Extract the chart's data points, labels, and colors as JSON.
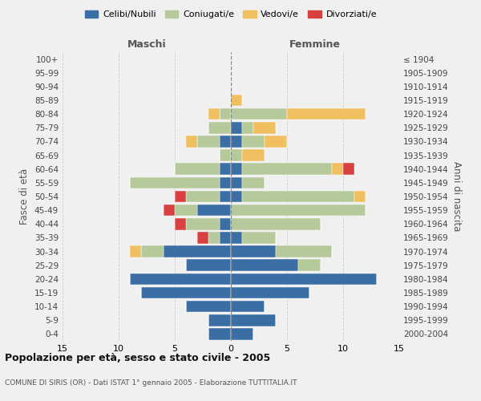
{
  "age_groups": [
    "0-4",
    "5-9",
    "10-14",
    "15-19",
    "20-24",
    "25-29",
    "30-34",
    "35-39",
    "40-44",
    "45-49",
    "50-54",
    "55-59",
    "60-64",
    "65-69",
    "70-74",
    "75-79",
    "80-84",
    "85-89",
    "90-94",
    "95-99",
    "100+"
  ],
  "birth_years": [
    "2000-2004",
    "1995-1999",
    "1990-1994",
    "1985-1989",
    "1980-1984",
    "1975-1979",
    "1970-1974",
    "1965-1969",
    "1960-1964",
    "1955-1959",
    "1950-1954",
    "1945-1949",
    "1940-1944",
    "1935-1939",
    "1930-1934",
    "1925-1929",
    "1920-1924",
    "1915-1919",
    "1910-1914",
    "1905-1909",
    "≤ 1904"
  ],
  "colors": {
    "celibi": "#3b6ea5",
    "coniugati": "#b5c99a",
    "vedovi": "#f0c060",
    "divorziati": "#d94040"
  },
  "maschi": {
    "celibi": [
      2,
      2,
      4,
      8,
      9,
      4,
      6,
      1,
      1,
      3,
      1,
      1,
      1,
      0,
      1,
      0,
      0,
      0,
      0,
      0,
      0
    ],
    "coniugati": [
      0,
      0,
      0,
      0,
      0,
      0,
      2,
      1,
      3,
      2,
      3,
      8,
      4,
      1,
      2,
      2,
      1,
      0,
      0,
      0,
      0
    ],
    "vedovi": [
      0,
      0,
      0,
      0,
      0,
      0,
      1,
      0,
      0,
      0,
      0,
      0,
      0,
      0,
      1,
      0,
      1,
      0,
      0,
      0,
      0
    ],
    "divorziati": [
      0,
      0,
      0,
      0,
      0,
      0,
      0,
      1,
      1,
      1,
      1,
      0,
      0,
      0,
      0,
      0,
      0,
      0,
      0,
      0,
      0
    ]
  },
  "femmine": {
    "celibi": [
      2,
      4,
      3,
      7,
      13,
      6,
      4,
      1,
      0,
      0,
      1,
      1,
      1,
      0,
      1,
      1,
      0,
      0,
      0,
      0,
      0
    ],
    "coniugati": [
      0,
      0,
      0,
      0,
      0,
      2,
      5,
      3,
      8,
      12,
      10,
      2,
      8,
      1,
      2,
      1,
      5,
      0,
      0,
      0,
      0
    ],
    "vedovi": [
      0,
      0,
      0,
      0,
      0,
      0,
      0,
      0,
      0,
      0,
      1,
      0,
      1,
      2,
      2,
      2,
      7,
      1,
      0,
      0,
      0
    ],
    "divorziati": [
      0,
      0,
      0,
      0,
      0,
      0,
      0,
      0,
      0,
      0,
      0,
      0,
      1,
      0,
      0,
      0,
      0,
      0,
      0,
      0,
      0
    ]
  },
  "xlim": 15,
  "title": "Popolazione per età, sesso e stato civile - 2005",
  "subtitle": "COMUNE DI SIRIS (OR) - Dati ISTAT 1° gennaio 2005 - Elaborazione TUTTITALIA.IT",
  "ylabel_left": "Fasce di età",
  "ylabel_right": "Anni di nascita",
  "xlabel_left": "Maschi",
  "xlabel_right": "Femmine",
  "bg_color": "#f0f0f0",
  "grid_color": "#cccccc",
  "bar_edgecolor": "white",
  "bar_linewidth": 0.3
}
